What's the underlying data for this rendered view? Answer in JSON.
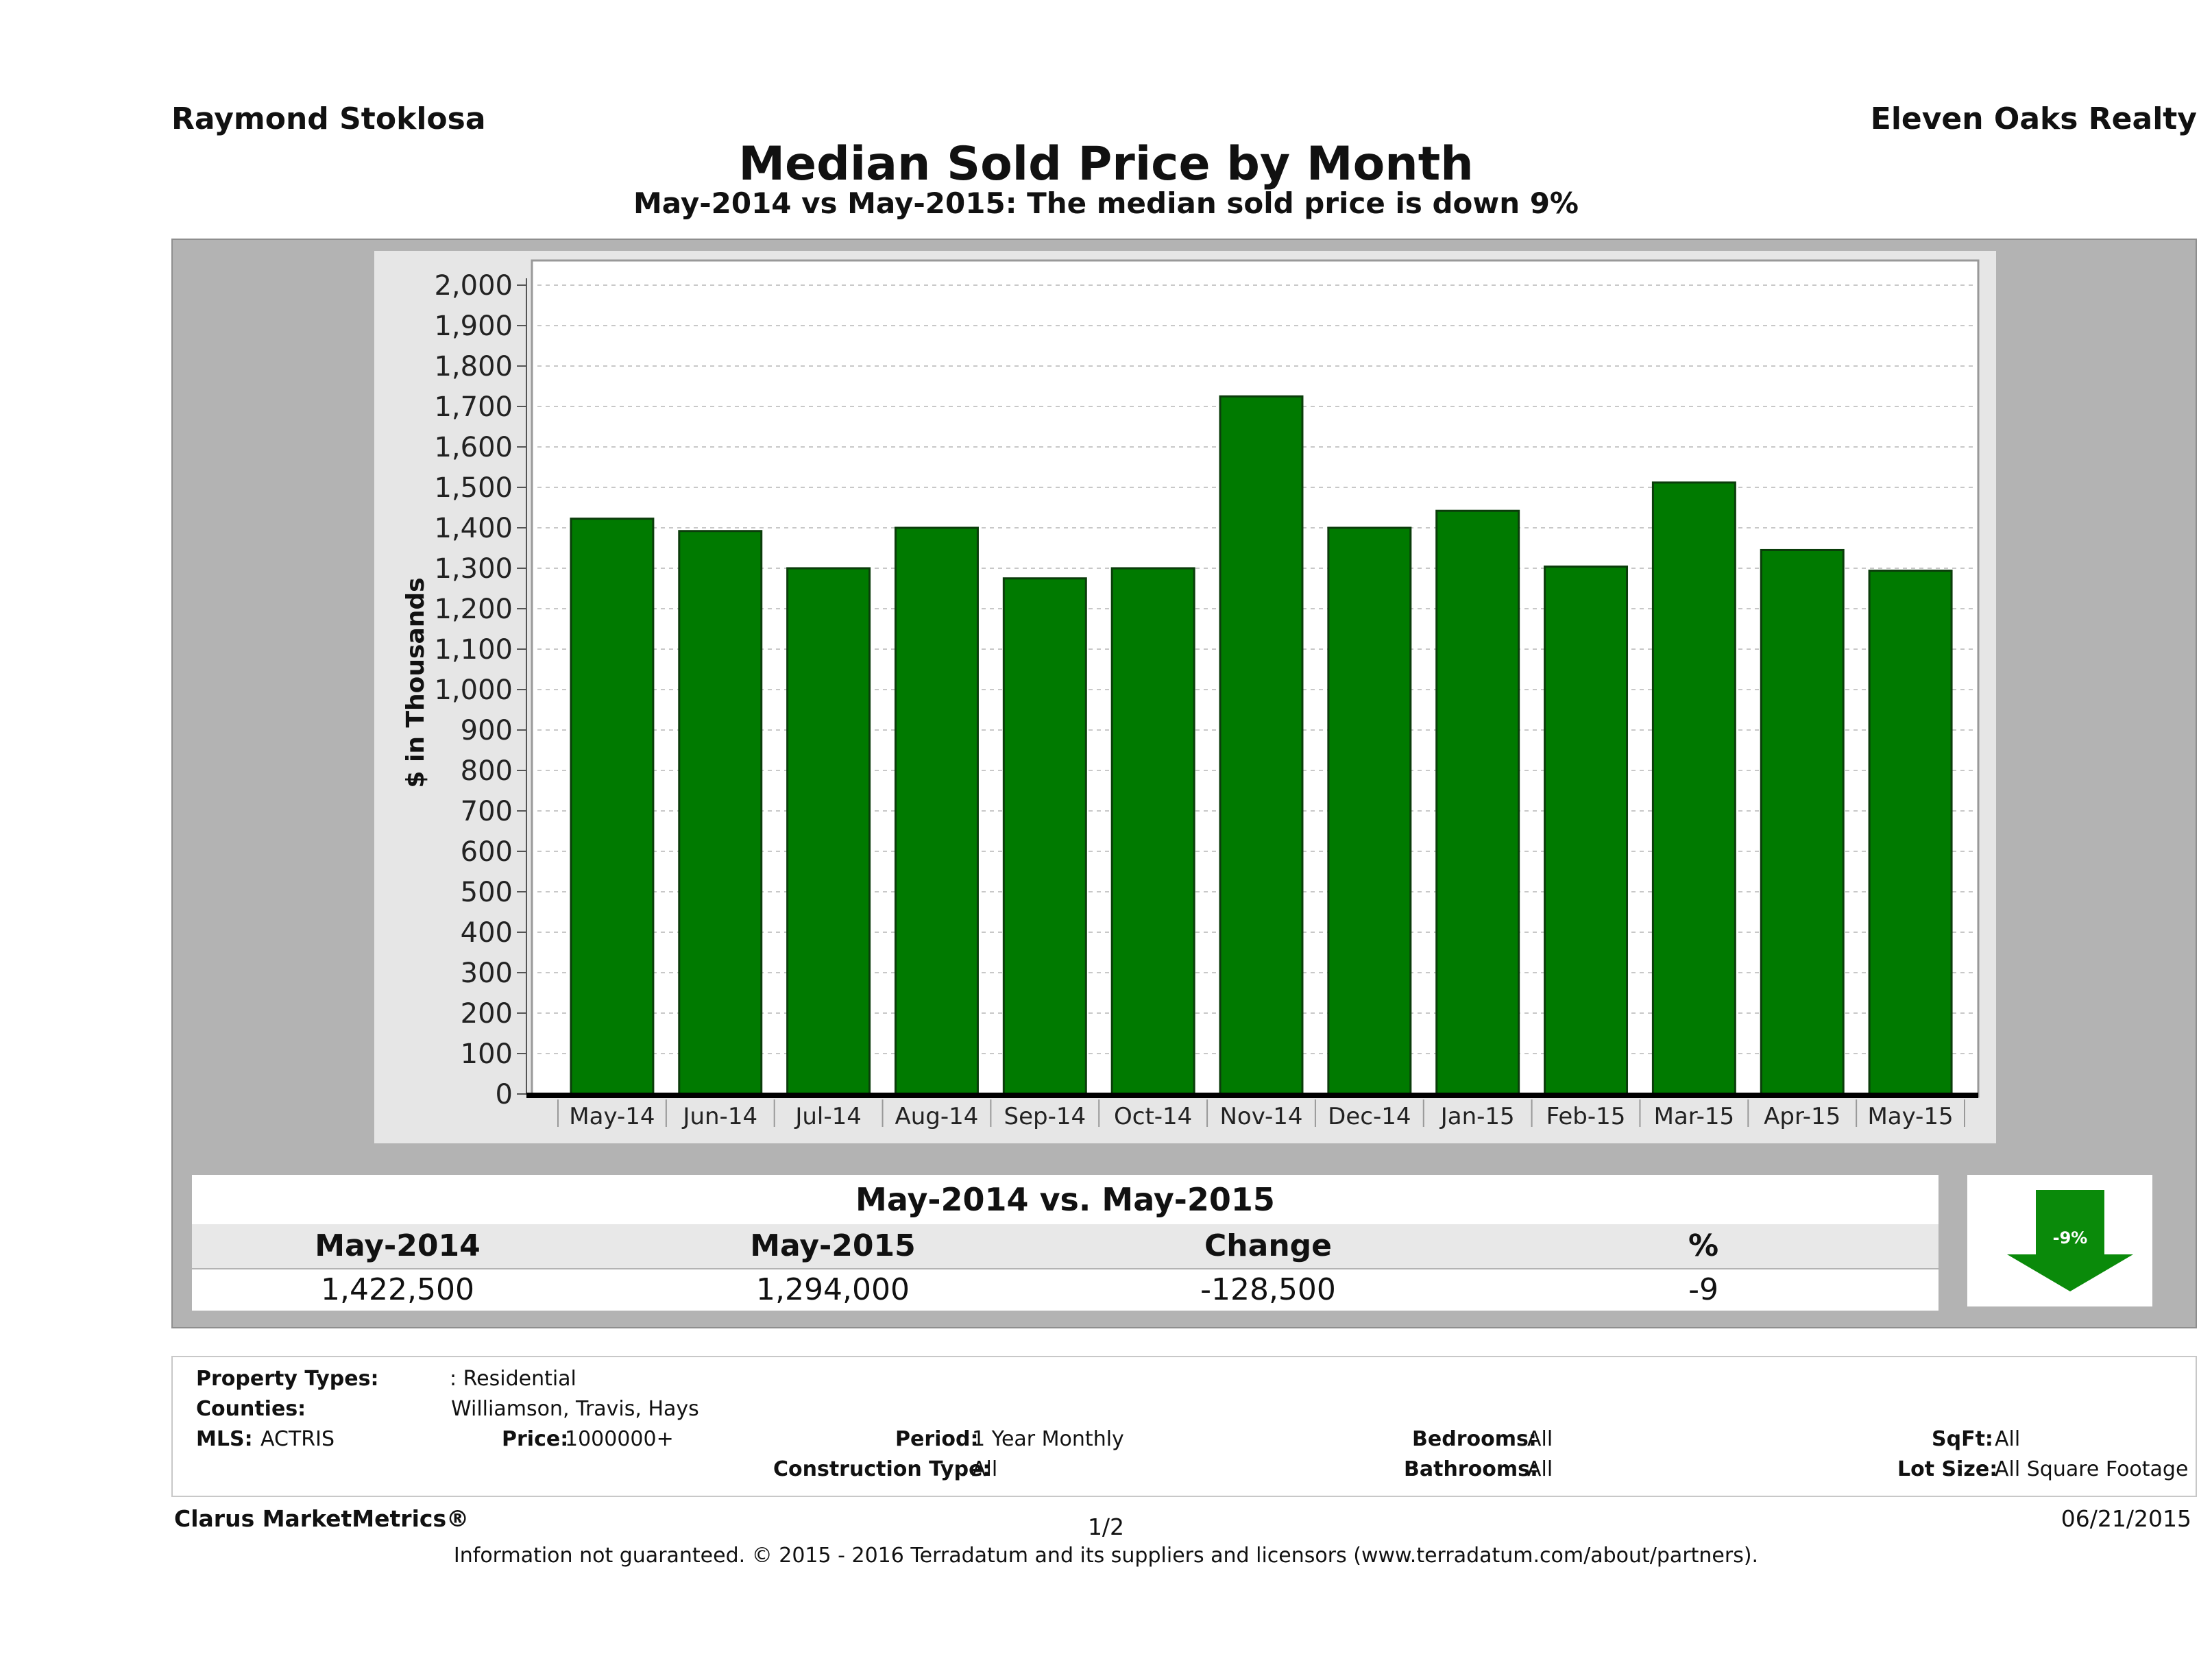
{
  "header": {
    "agent": "Raymond Stoklosa",
    "brokerage": "Eleven Oaks Realty",
    "title": "Median Sold Price by Month",
    "subtitle": "May-2014 vs May-2015: The median sold price is down 9%"
  },
  "chart_data": {
    "type": "bar",
    "title": "Median Sold Price by Month",
    "ylabel": "$ in Thousands",
    "xlabel": "",
    "ylim": [
      0,
      2000
    ],
    "ytick_step": 100,
    "grid": true,
    "categories": [
      "May-14",
      "Jun-14",
      "Jul-14",
      "Aug-14",
      "Sep-14",
      "Oct-14",
      "Nov-14",
      "Dec-14",
      "Jan-15",
      "Feb-15",
      "Mar-15",
      "Apr-15",
      "May-15"
    ],
    "values": [
      1422.5,
      1392,
      1300,
      1400,
      1275,
      1300,
      1725,
      1400,
      1442,
      1304,
      1512,
      1345,
      1294
    ],
    "bar_color": "#007a00"
  },
  "summary": {
    "heading": "May-2014 vs. May-2015",
    "columns": [
      "May-2014",
      "May-2015",
      "Change",
      "%"
    ],
    "values": [
      "1,422,500",
      "1,294,000",
      "-128,500",
      "-9"
    ],
    "badge": "-9%",
    "badge_color": "#0a8a0a"
  },
  "criteria": {
    "property_types_label": "Property Types:",
    "property_types": ": Residential",
    "counties_label": "Counties:",
    "counties": "Williamson, Travis, Hays",
    "mls_label": "MLS:",
    "mls": "ACTRIS",
    "price_label": "Price:",
    "price": "1000000+",
    "period_label": "Period:",
    "period": "1 Year Monthly",
    "construction_label": "Construction Type:",
    "construction": "All",
    "bedrooms_label": "Bedrooms:",
    "bedrooms": "All",
    "bathrooms_label": "Bathrooms:",
    "bathrooms": "All",
    "sqft_label": "SqFt:",
    "sqft": "All",
    "lotsize_label": "Lot Size:",
    "lotsize": "All Square Footage"
  },
  "footer": {
    "brand": "Clarus MarketMetrics®",
    "page": "1/2",
    "date": "06/21/2015",
    "note": "Information not guaranteed. © 2015 - 2016 Terradatum and its suppliers and licensors (www.terradatum.com/about/partners)."
  }
}
